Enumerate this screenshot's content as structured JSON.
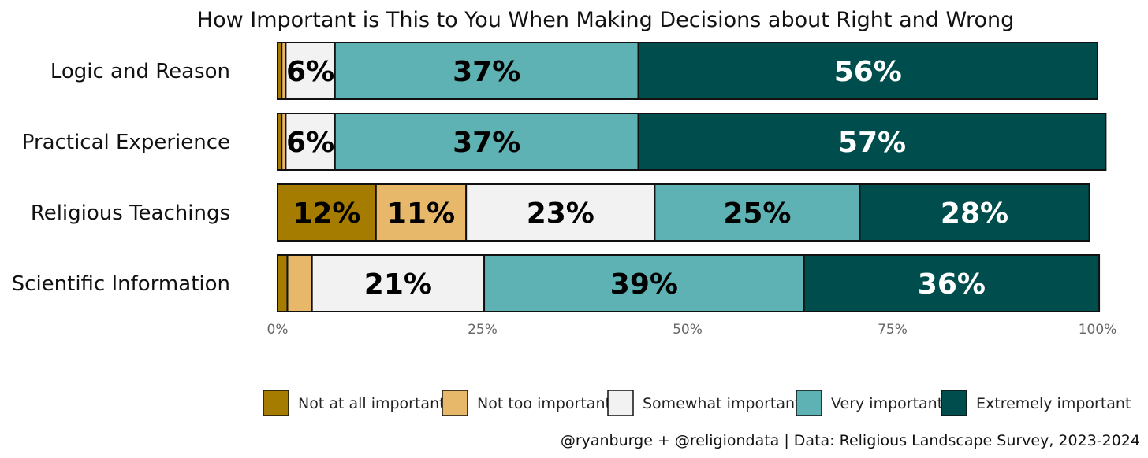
{
  "chart_data": {
    "type": "bar",
    "orientation": "horizontal",
    "stacked": true,
    "title": "How Important is This to You When Making Decisions about Right and Wrong",
    "categories": [
      "Logic and Reason",
      "Practical Experience",
      "Religious Teachings",
      "Scientific Information"
    ],
    "series": [
      {
        "name": "Not at all important",
        "color": "#A67C00",
        "values": [
          0.5,
          0.5,
          12,
          1.2
        ],
        "labels": [
          "",
          "",
          "12%",
          ""
        ]
      },
      {
        "name": "Not too important",
        "color": "#E8B86A",
        "values": [
          0.5,
          0.5,
          11,
          3
        ],
        "labels": [
          "",
          "",
          "11%",
          ""
        ]
      },
      {
        "name": "Somewhat important",
        "color": "#F2F2F2",
        "values": [
          6,
          6,
          23,
          21
        ],
        "labels": [
          "6%",
          "6%",
          "23%",
          "21%"
        ]
      },
      {
        "name": "Very important",
        "color": "#5FB2B3",
        "values": [
          37,
          37,
          25,
          39
        ],
        "labels": [
          "37%",
          "37%",
          "25%",
          "39%"
        ]
      },
      {
        "name": "Extremely important",
        "color": "#004D4D",
        "values": [
          56,
          57,
          28,
          36
        ],
        "labels": [
          "56%",
          "57%",
          "28%",
          "36%"
        ]
      }
    ],
    "xlim": [
      0,
      100
    ],
    "x_ticks": [
      "0%",
      "25%",
      "50%",
      "75%",
      "100%"
    ],
    "legend_position": "bottom-right",
    "grid": false,
    "caption": "@ryanburge + @religiondata | Data: Religious Landscape Survey, 2023-2024"
  }
}
